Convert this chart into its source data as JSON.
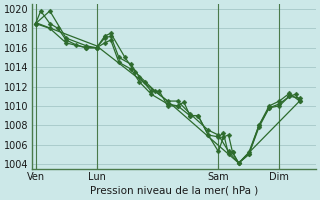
{
  "background_color": "#cce8e8",
  "grid_color": "#aacccc",
  "line_color": "#2d6b2d",
  "marker_color": "#2d6b2d",
  "xlabel": "Pression niveau de la mer( hPa )",
  "ylim": [
    1003.5,
    1020.5
  ],
  "yticks": [
    1004,
    1006,
    1008,
    1010,
    1012,
    1014,
    1016,
    1018,
    1020
  ],
  "xtick_labels": [
    "Ven",
    "Lun",
    "Sam",
    "Dim"
  ],
  "xtick_positions": [
    0,
    3,
    9,
    12
  ],
  "xlim": [
    -0.2,
    13.8
  ],
  "series": [
    [
      0.0,
      1018.5,
      0.25,
      1019.8,
      0.7,
      1018.5,
      1.1,
      1018.0,
      1.5,
      1016.8,
      2.0,
      1016.3,
      2.5,
      1016.0,
      3.0,
      1016.0,
      3.4,
      1017.0,
      3.7,
      1017.2,
      4.1,
      1015.0,
      4.7,
      1014.3,
      5.1,
      1013.0,
      5.7,
      1011.5,
      6.1,
      1011.5,
      6.5,
      1010.0,
      7.0,
      1010.0,
      7.3,
      1010.4,
      7.6,
      1009.0,
      8.0,
      1009.0,
      8.5,
      1007.0,
      9.0,
      1005.3,
      9.25,
      1006.8,
      9.5,
      1007.0,
      9.7,
      1005.2,
      10.0,
      1004.1,
      10.5,
      1005.0,
      11.0,
      1007.8,
      11.5,
      1009.8,
      12.0,
      1010.0,
      12.5,
      1011.0,
      12.8,
      1011.2,
      13.0,
      1010.5
    ],
    [
      0.0,
      1018.5,
      0.7,
      1018.0,
      1.5,
      1016.5,
      2.5,
      1016.0,
      3.0,
      1016.0,
      3.4,
      1016.5,
      3.7,
      1016.8,
      4.1,
      1014.5,
      4.7,
      1013.8,
      5.1,
      1012.5,
      5.7,
      1011.2,
      6.5,
      1010.2,
      7.0,
      1010.0,
      7.6,
      1009.0,
      8.0,
      1009.0,
      8.5,
      1007.0,
      9.0,
      1006.8,
      9.25,
      1007.2,
      9.5,
      1005.0,
      9.7,
      1005.2,
      10.0,
      1004.1,
      10.5,
      1005.2,
      11.0,
      1008.0,
      11.5,
      1009.8,
      12.0,
      1010.2,
      12.5,
      1011.0,
      13.0,
      1010.8
    ],
    [
      0.0,
      1018.5,
      0.7,
      1019.8,
      1.5,
      1017.0,
      2.5,
      1016.2,
      3.0,
      1016.0,
      3.4,
      1017.2,
      3.7,
      1017.5,
      4.4,
      1015.0,
      4.9,
      1013.5,
      5.4,
      1012.5,
      5.9,
      1011.5,
      6.5,
      1010.5,
      7.0,
      1010.5,
      7.6,
      1009.2,
      8.5,
      1007.5,
      9.0,
      1007.0,
      9.5,
      1005.3,
      10.0,
      1004.1,
      10.5,
      1005.0,
      11.0,
      1008.0,
      11.5,
      1010.0,
      12.0,
      1010.5,
      12.5,
      1011.3,
      13.0,
      1010.5
    ],
    [
      0.0,
      1018.6,
      3.0,
      1016.2,
      6.5,
      1010.5,
      10.0,
      1004.1,
      13.0,
      1010.5
    ]
  ]
}
